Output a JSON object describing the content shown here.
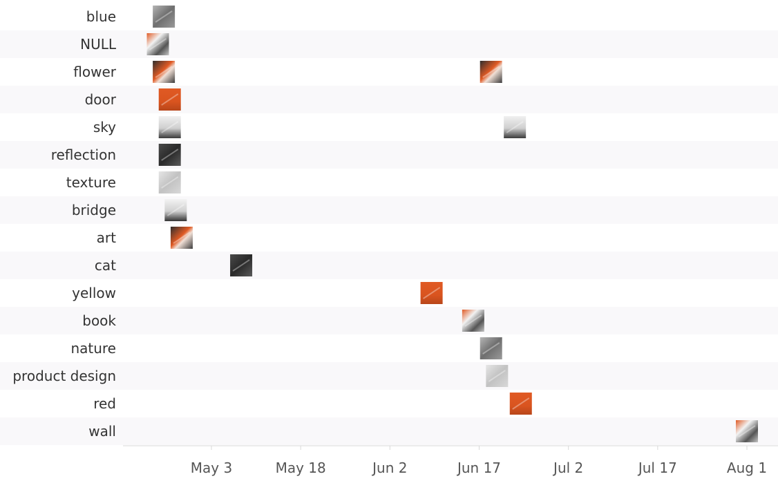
{
  "chart_data": {
    "type": "scatter",
    "title": "",
    "xlabel": "",
    "ylabel": "",
    "categories": [
      "blue",
      "NULL",
      "flower",
      "door",
      "sky",
      "reflection",
      "texture",
      "bridge",
      "art",
      "cat",
      "yellow",
      "book",
      "nature",
      "product design",
      "red",
      "wall"
    ],
    "x_ticks": [
      "May 3",
      "May 18",
      "Jun 2",
      "Jun 17",
      "Jul 2",
      "Jul 17",
      "Aug 1"
    ],
    "x_range": [
      "Apr 18",
      "Aug 5"
    ],
    "points": [
      {
        "category": "blue",
        "date": "Apr 25",
        "thumb": "gray"
      },
      {
        "category": "NULL",
        "date": "Apr 24",
        "thumb": "mixed"
      },
      {
        "category": "flower",
        "date": "Apr 25",
        "thumb": "dark-orange"
      },
      {
        "category": "flower",
        "date": "Jun 19",
        "thumb": "dark-orange"
      },
      {
        "category": "door",
        "date": "Apr 26",
        "thumb": "orange"
      },
      {
        "category": "sky",
        "date": "Apr 26",
        "thumb": "sky"
      },
      {
        "category": "sky",
        "date": "Jun 23",
        "thumb": "sky"
      },
      {
        "category": "reflection",
        "date": "Apr 26",
        "thumb": "dark"
      },
      {
        "category": "texture",
        "date": "Apr 26",
        "thumb": "light"
      },
      {
        "category": "bridge",
        "date": "Apr 27",
        "thumb": "bridge"
      },
      {
        "category": "art",
        "date": "Apr 28",
        "thumb": "dark-orange"
      },
      {
        "category": "cat",
        "date": "May 8",
        "thumb": "dark"
      },
      {
        "category": "yellow",
        "date": "Jun 9",
        "thumb": "orange"
      },
      {
        "category": "book",
        "date": "Jun 16",
        "thumb": "mixed"
      },
      {
        "category": "nature",
        "date": "Jun 19",
        "thumb": "gray"
      },
      {
        "category": "product design",
        "date": "Jun 20",
        "thumb": "light"
      },
      {
        "category": "red",
        "date": "Jun 24",
        "thumb": "orange"
      },
      {
        "category": "wall",
        "date": "Aug 1",
        "thumb": "mixed"
      }
    ],
    "grid": {
      "horizontal_bands": true,
      "vertical_lines": false
    },
    "legend": "none"
  },
  "colors": {
    "band": "#f9f8fa",
    "axis": "#d9d9d9",
    "orange": "#e05a24",
    "dark": "#3a3a3a",
    "gray": "#8a8a8a",
    "light": "#c8c8c8"
  }
}
